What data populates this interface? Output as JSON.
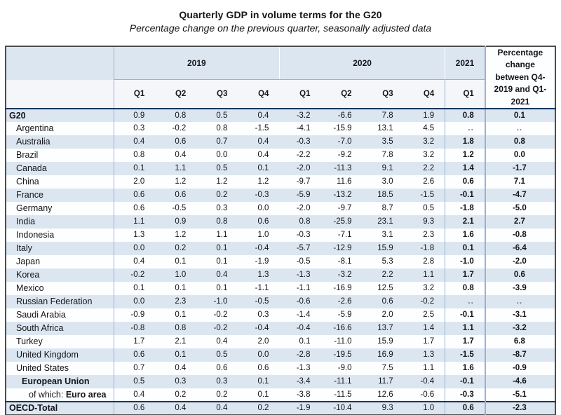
{
  "title": "Quarterly GDP in volume terms for the G20",
  "subtitle": "Percentage change on the previous quarter, seasonally adjusted data",
  "colors": {
    "stripe_blue": "#dce6f1",
    "grid_blue": "#95b3d7",
    "header_rule_navy": "#17375e",
    "outer_border": "#4d4d4d"
  },
  "table": {
    "year_groups": [
      {
        "label": "2019",
        "span": 4
      },
      {
        "label": "2020",
        "span": 4
      },
      {
        "label": "2021",
        "span": 1
      }
    ],
    "pct_header": "Percentage change between Q4-2019 and Q1-2021",
    "quarter_headers": [
      "Q1",
      "Q2",
      "Q3",
      "Q4",
      "Q1",
      "Q2",
      "Q3",
      "Q4",
      "Q1"
    ],
    "rows": [
      {
        "label": "G20",
        "style": "total",
        "values": [
          "0.9",
          "0.8",
          "0.5",
          "0.4",
          "-3.2",
          "-6.6",
          "7.8",
          "1.9",
          "0.8",
          "0.1"
        ]
      },
      {
        "label": "Argentina",
        "style": "country",
        "values": [
          "0.3",
          "-0.2",
          "0.8",
          "-1.5",
          "-4.1",
          "-15.9",
          "13.1",
          "4.5",
          "..",
          ".."
        ]
      },
      {
        "label": "Australia",
        "style": "country",
        "values": [
          "0.4",
          "0.6",
          "0.7",
          "0.4",
          "-0.3",
          "-7.0",
          "3.5",
          "3.2",
          "1.8",
          "0.8"
        ]
      },
      {
        "label": "Brazil",
        "style": "country",
        "values": [
          "0.8",
          "0.4",
          "0.0",
          "0.4",
          "-2.2",
          "-9.2",
          "7.8",
          "3.2",
          "1.2",
          "0.0"
        ]
      },
      {
        "label": "Canada",
        "style": "country",
        "values": [
          "0.1",
          "1.1",
          "0.5",
          "0.1",
          "-2.0",
          "-11.3",
          "9.1",
          "2.2",
          "1.4",
          "-1.7"
        ]
      },
      {
        "label": "China",
        "style": "country",
        "values": [
          "2.0",
          "1.2",
          "1.2",
          "1.2",
          "-9.7",
          "11.6",
          "3.0",
          "2.6",
          "0.6",
          "7.1"
        ]
      },
      {
        "label": "France",
        "style": "country",
        "values": [
          "0.6",
          "0.6",
          "0.2",
          "-0.3",
          "-5.9",
          "-13.2",
          "18.5",
          "-1.5",
          "-0.1",
          "-4.7"
        ]
      },
      {
        "label": "Germany",
        "style": "country",
        "values": [
          "0.6",
          "-0.5",
          "0.3",
          "0.0",
          "-2.0",
          "-9.7",
          "8.7",
          "0.5",
          "-1.8",
          "-5.0"
        ]
      },
      {
        "label": "India",
        "style": "country",
        "values": [
          "1.1",
          "0.9",
          "0.8",
          "0.6",
          "0.8",
          "-25.9",
          "23.1",
          "9.3",
          "2.1",
          "2.7"
        ]
      },
      {
        "label": "Indonesia",
        "style": "country",
        "values": [
          "1.3",
          "1.2",
          "1.1",
          "1.0",
          "-0.3",
          "-7.1",
          "3.1",
          "2.3",
          "1.6",
          "-0.8"
        ]
      },
      {
        "label": "Italy",
        "style": "country",
        "values": [
          "0.0",
          "0.2",
          "0.1",
          "-0.4",
          "-5.7",
          "-12.9",
          "15.9",
          "-1.8",
          "0.1",
          "-6.4"
        ]
      },
      {
        "label": "Japan",
        "style": "country",
        "values": [
          "0.4",
          "0.1",
          "0.1",
          "-1.9",
          "-0.5",
          "-8.1",
          "5.3",
          "2.8",
          "-1.0",
          "-2.0"
        ]
      },
      {
        "label": "Korea",
        "style": "country",
        "values": [
          "-0.2",
          "1.0",
          "0.4",
          "1.3",
          "-1.3",
          "-3.2",
          "2.2",
          "1.1",
          "1.7",
          "0.6"
        ]
      },
      {
        "label": "Mexico",
        "style": "country",
        "values": [
          "0.1",
          "0.1",
          "0.1",
          "-1.1",
          "-1.1",
          "-16.9",
          "12.5",
          "3.2",
          "0.8",
          "-3.9"
        ]
      },
      {
        "label": "Russian Federation",
        "style": "country",
        "values": [
          "0.0",
          "2.3",
          "-1.0",
          "-0.5",
          "-0.6",
          "-2.6",
          "0.6",
          "-0.2",
          "..",
          ".."
        ]
      },
      {
        "label": "Saudi Arabia",
        "style": "country",
        "values": [
          "-0.9",
          "0.1",
          "-0.2",
          "0.3",
          "-1.4",
          "-5.9",
          "2.0",
          "2.5",
          "-0.1",
          "-3.1"
        ]
      },
      {
        "label": "South Africa",
        "style": "country",
        "values": [
          "-0.8",
          "0.8",
          "-0.2",
          "-0.4",
          "-0.4",
          "-16.6",
          "13.7",
          "1.4",
          "1.1",
          "-3.2"
        ]
      },
      {
        "label": "Turkey",
        "style": "country",
        "values": [
          "1.7",
          "2.1",
          "0.4",
          "2.0",
          "0.1",
          "-11.0",
          "15.9",
          "1.7",
          "1.7",
          "6.8"
        ]
      },
      {
        "label": "United Kingdom",
        "style": "country",
        "values": [
          "0.6",
          "0.1",
          "0.5",
          "0.0",
          "-2.8",
          "-19.5",
          "16.9",
          "1.3",
          "-1.5",
          "-8.7"
        ]
      },
      {
        "label": "United States",
        "style": "country",
        "values": [
          "0.7",
          "0.4",
          "0.6",
          "0.6",
          "-1.3",
          "-9.0",
          "7.5",
          "1.1",
          "1.6",
          "-0.9"
        ]
      },
      {
        "label": "European Union",
        "style": "eu",
        "values": [
          "0.5",
          "0.3",
          "0.3",
          "0.1",
          "-3.4",
          "-11.1",
          "11.7",
          "-0.4",
          "-0.1",
          "-4.6"
        ]
      },
      {
        "label": "Euro area",
        "label_prefix": "of which: ",
        "style": "euro",
        "values": [
          "0.4",
          "0.2",
          "0.2",
          "0.1",
          "-3.8",
          "-11.5",
          "12.6",
          "-0.6",
          "-0.3",
          "-5.1"
        ]
      },
      {
        "label": "OECD-Total",
        "style": "oecd",
        "values": [
          "0.6",
          "0.4",
          "0.4",
          "0.2",
          "-1.9",
          "-10.4",
          "9.3",
          "1.0",
          "0.6",
          "-2.3"
        ]
      }
    ]
  }
}
